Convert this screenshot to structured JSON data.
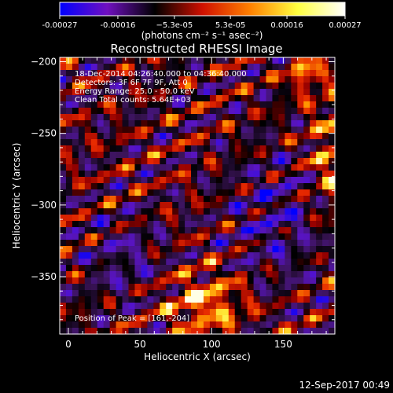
{
  "footer_date": "12-Sep-2017 00:49",
  "chart_data": {
    "type": "heatmap",
    "title": "Reconstructed RHESSI Image",
    "xlabel": "Heliocentric X (arcsec)",
    "ylabel": "Heliocentric Y (arcsec)",
    "xlim": [
      -6,
      186
    ],
    "ylim": [
      -390,
      -197
    ],
    "x_ticks": [
      0,
      50,
      100,
      150
    ],
    "y_ticks": [
      -200,
      -250,
      -300,
      -350
    ],
    "colorbar": {
      "label": "(photons cm⁻² s⁻¹ asec⁻²)",
      "range": [
        -0.00027,
        0.00027
      ],
      "ticks": [
        -0.00027,
        -0.00016,
        -5.3e-05,
        5.3e-05,
        0.00016,
        0.00027
      ],
      "tick_labels": [
        "-0.00027",
        "-0.00016",
        "−5.3e-05",
        "5.3e-05",
        "0.00016",
        "0.00027"
      ],
      "colors": [
        "#0000ff",
        "#7010c0",
        "#000000",
        "#d01000",
        "#ff8000",
        "#ffff40",
        "#ffffff"
      ]
    },
    "annotations": [
      "18-Dec-2014 04:26:40.000 to 04:36:40.000",
      "Detectors: 3F 6F 7F 9F, Att 0",
      "Energy Range: 25.0 - 50.0 keV",
      "Clean     Total counts: 5.64E+03"
    ],
    "peak": {
      "text": "Position of Peak = [161,-204]",
      "x": 161,
      "y": -204,
      "value": 0.00027
    },
    "grid": false
  }
}
